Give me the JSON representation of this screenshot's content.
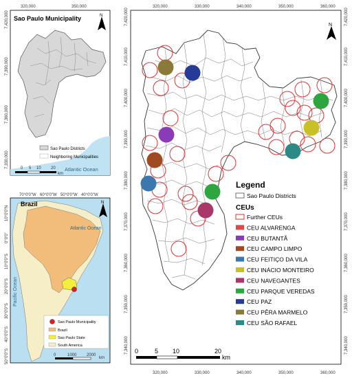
{
  "inset_sp": {
    "title": "Sao Paulo Municipality",
    "x_ticks": [
      "320,000",
      "350,000"
    ],
    "y_ticks": [
      "7,420,000",
      "7,390,000",
      "7,360,000",
      "7,330,000"
    ],
    "legend": [
      "Sao Paulo Districts",
      "Neighboring Municipalities"
    ],
    "ocean": "Atlantic Ocean",
    "scale_ticks": [
      "0",
      "5",
      "10",
      "20"
    ],
    "scale_unit": "km",
    "north": "N"
  },
  "inset_brazil": {
    "title": "Brazil",
    "x_ticks": [
      "70°0'0\"W",
      "60°0'0\"W",
      "50°0'0\"W",
      "40°0'0\"W"
    ],
    "y_ticks": [
      "10°0'0\"N",
      "0°0'0\"",
      "10°0'0\"S",
      "20°0'0\"S",
      "30°0'0\"S",
      "40°0'0\"S",
      "50°0'0\"S"
    ],
    "ocean_atlantic": "Atlantic Ocean",
    "ocean_pacific": "Pacific Ocean",
    "legend": [
      "Sao Paulo Municipality",
      "Brazil",
      "Sao Paulo State",
      "South America"
    ],
    "scale_ticks": [
      "0",
      "1000",
      "2000"
    ],
    "scale_unit": "km",
    "north": "N"
  },
  "main_map": {
    "x_ticks": [
      "320,000",
      "330,000",
      "340,000",
      "350,000",
      "360,000"
    ],
    "y_ticks": [
      "7,420,000",
      "7,410,000",
      "7,400,000",
      "7,390,000",
      "7,380,000",
      "7,370,000",
      "7,360,000",
      "7,350,000",
      "7,340,000"
    ],
    "north": "N",
    "scale_ticks": [
      "0",
      "5",
      "10",
      "20"
    ],
    "scale_unit": "km"
  },
  "legend": {
    "title": "Legend",
    "districts": "Sao Paulo Districts",
    "ceus_title": "CEUs",
    "items": [
      {
        "label": "Further CEUs",
        "color": "#e03030",
        "style": "outline"
      },
      {
        "label": "CEU ALVARENGA",
        "color": "#e04848",
        "style": "fill"
      },
      {
        "label": "CEU BUTANTÃ",
        "color": "#8a3cb8",
        "style": "fill"
      },
      {
        "label": "CEU CAMPO LIMPO",
        "color": "#a04a22",
        "style": "fill"
      },
      {
        "label": "CEU FEITIÇO DA VILA",
        "color": "#3a78ae",
        "style": "fill"
      },
      {
        "label": "CEU INÁCIO MONTEIRO",
        "color": "#c8c024",
        "style": "fill"
      },
      {
        "label": "CEU NAVEGANTES",
        "color": "#a8386a",
        "style": "fill"
      },
      {
        "label": "CEU PARQUE VEREDAS",
        "color": "#2ea640",
        "style": "fill"
      },
      {
        "label": "CEU PAZ",
        "color": "#243c98",
        "style": "fill"
      },
      {
        "label": "CEU PÊRA MARMELO",
        "color": "#8a7a3a",
        "style": "fill"
      },
      {
        "label": "CEU SÃO RAFAEL",
        "color": "#2c8a86",
        "style": "fill"
      }
    ]
  }
}
